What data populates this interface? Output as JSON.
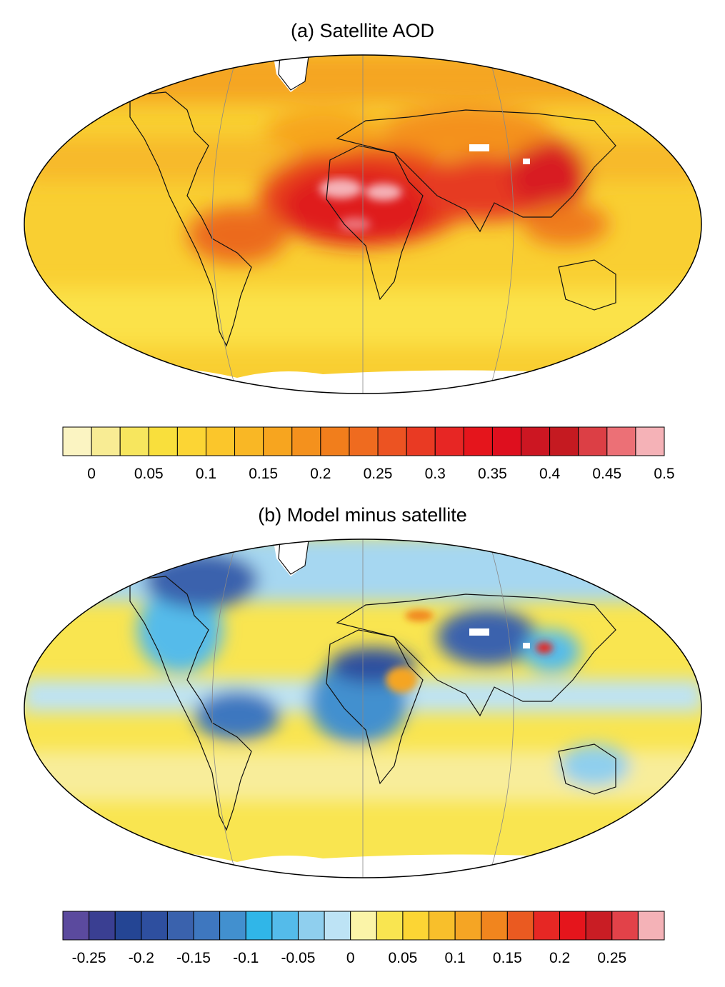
{
  "panels": [
    {
      "title": "(a) Satellite AOD",
      "colorbar": {
        "colors": [
          "#fbf4c2",
          "#f8ec94",
          "#f7e65e",
          "#f9df3c",
          "#fcd534",
          "#fbc62b",
          "#f9b725",
          "#f7a51f",
          "#f4911d",
          "#f17e1c",
          "#ef6b1f",
          "#ec5322",
          "#e93a23",
          "#e72624",
          "#e5151c",
          "#de0f1e",
          "#cc1622",
          "#c51a21",
          "#dc3f45",
          "#ec7076",
          "#f5b2b7"
        ],
        "tick_labels": [
          "0",
          "0.05",
          "0.1",
          "0.15",
          "0.2",
          "0.25",
          "0.3",
          "0.35",
          "0.4",
          "0.45",
          "0.5"
        ],
        "tick_box_boundaries": [
          1,
          3,
          5,
          7,
          9,
          11,
          13,
          15,
          17,
          19,
          21
        ]
      }
    },
    {
      "title": "(b) Model minus satellite",
      "colorbar": {
        "colors": [
          "#5b4a9e",
          "#3a3f92",
          "#244594",
          "#2e4f9f",
          "#3a62ad",
          "#3e77bf",
          "#4290cf",
          "#30b6e8",
          "#54bbea",
          "#8fcfee",
          "#bde3f5",
          "#fbf4a8",
          "#f9e550",
          "#fcd534",
          "#f8bf2b",
          "#f5a524",
          "#f1851e",
          "#ea5a21",
          "#e62724",
          "#e5151c",
          "#c91d24",
          "#e24249",
          "#f4b2b7"
        ],
        "tick_labels": [
          "-0.25",
          "-0.2",
          "-0.15",
          "-0.1",
          "-0.05",
          "0",
          "0.05",
          "0.1",
          "0.15",
          "0.2",
          "0.25"
        ],
        "tick_box_boundaries": [
          1,
          3,
          5,
          7,
          9,
          11,
          13,
          15,
          17,
          19,
          21
        ]
      }
    }
  ]
}
